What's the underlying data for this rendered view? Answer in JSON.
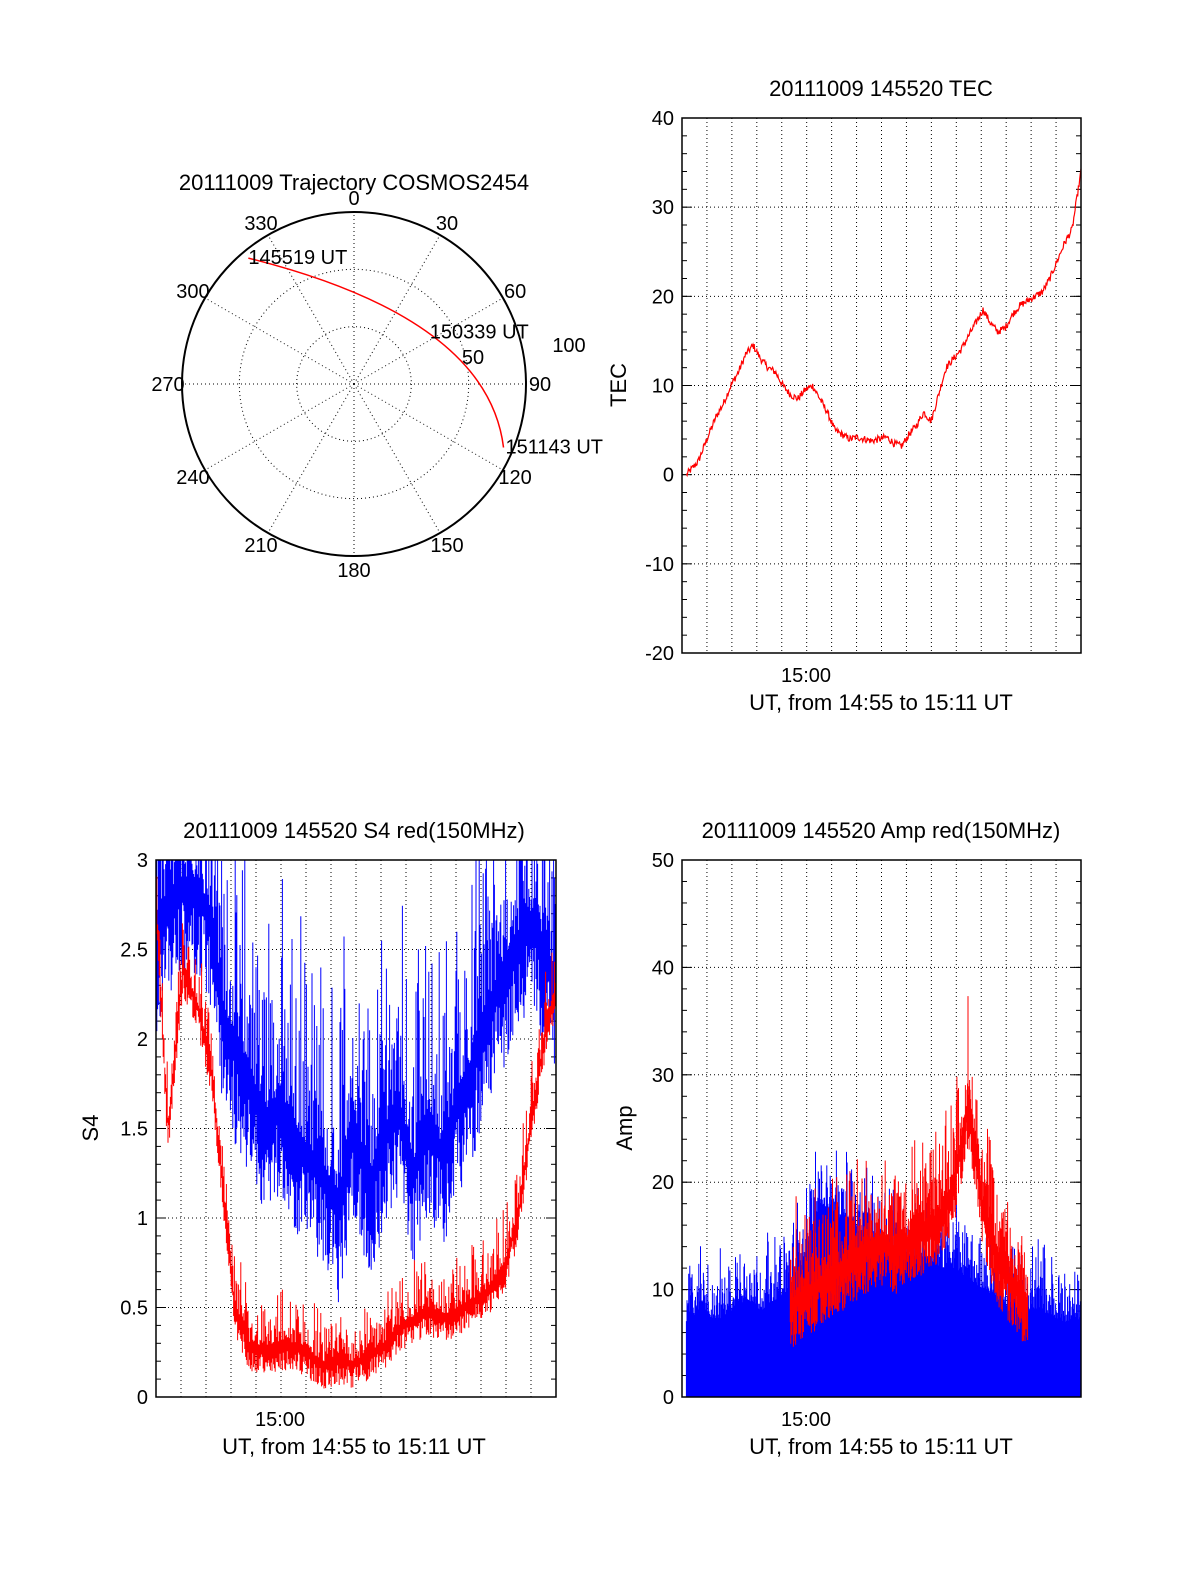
{
  "colors": {
    "red": "#ff0000",
    "blue": "#0000ff",
    "axis": "#000000",
    "grid": "#000000"
  },
  "chart_data": [
    {
      "type": "polar",
      "title": "20111009 Trajectory COSMOS2454",
      "angle_labels": [
        "0",
        "30",
        "60",
        "90",
        "120",
        "150",
        "180",
        "210",
        "240",
        "270",
        "300",
        "330"
      ],
      "radius_labels": [
        "50",
        "100"
      ],
      "grid": true,
      "track": {
        "color": "#ff0000",
        "start": {
          "label": "145519 UT",
          "azimuth": 320,
          "zenith": 86
        },
        "mid": {
          "label": "150339 UT",
          "azimuth": 58,
          "zenith": 48
        },
        "end": {
          "label": "151143 UT",
          "azimuth": 113,
          "zenith": 85
        }
      }
    },
    {
      "type": "line",
      "title": "20111009 145520 TEC",
      "ylabel": "TEC",
      "xlabel": "UT, from 14:55 to 15:11 UT",
      "x_tick_labels": [
        "15:00"
      ],
      "xlim": [
        14.917,
        15.186
      ],
      "ylim": [
        -20,
        40
      ],
      "y_ticks": [
        -20,
        -10,
        0,
        10,
        20,
        30,
        40
      ],
      "grid": true,
      "series": [
        {
          "color": "#ff0000",
          "x": [
            14.92,
            14.928,
            14.935,
            14.94,
            14.945,
            14.95,
            14.955,
            14.96,
            14.965,
            14.97,
            14.975,
            14.98,
            14.985,
            14.99,
            14.995,
            15.0,
            15.005,
            15.01,
            15.015,
            15.02,
            15.025,
            15.03,
            15.035,
            15.04,
            15.045,
            15.05,
            15.055,
            15.06,
            15.065,
            15.07,
            15.075,
            15.08,
            15.085,
            15.09,
            15.095,
            15.1,
            15.105,
            15.11,
            15.115,
            15.12,
            15.125,
            15.13,
            15.135,
            15.14,
            15.145,
            15.15,
            15.155,
            15.16,
            15.165,
            15.17,
            15.175,
            15.18,
            15.186
          ],
          "y": [
            0,
            1.5,
            4.5,
            6.5,
            8,
            10,
            11.5,
            13.5,
            14.5,
            13,
            12,
            11.5,
            10,
            9,
            8.5,
            9.5,
            10,
            8.5,
            7,
            5,
            4.5,
            4,
            4.2,
            4,
            3.8,
            4,
            4.2,
            3.5,
            3.2,
            4.5,
            5.5,
            7,
            6,
            9,
            12,
            13,
            14,
            15.5,
            17,
            18.5,
            17,
            16,
            16.5,
            18,
            19,
            19.5,
            20,
            20.5,
            22,
            24,
            26,
            27.5,
            34
          ]
        }
      ]
    },
    {
      "type": "line",
      "title": "20111009 145520 S4 red(150MHz)",
      "ylabel": "S4",
      "xlabel": "UT, from 14:55 to 15:11 UT",
      "x_tick_labels": [
        "15:00"
      ],
      "xlim": [
        14.917,
        15.186
      ],
      "ylim": [
        0,
        3
      ],
      "y_ticks": [
        "0",
        "0.5",
        "1",
        "1.5",
        "2",
        "2.5",
        "3"
      ],
      "grid": true,
      "series": [
        {
          "color": "#0000ff",
          "x": [
            14.917,
            14.925,
            14.935,
            14.945,
            14.955,
            14.962,
            14.97,
            14.98,
            14.99,
            15.0,
            15.01,
            15.02,
            15.03,
            15.04,
            15.05,
            15.06,
            15.07,
            15.08,
            15.09,
            15.1,
            15.11,
            15.12,
            15.13,
            15.14,
            15.15,
            15.16,
            15.17,
            15.18,
            15.186
          ],
          "y": [
            2.6,
            2.8,
            2.9,
            2.9,
            2.7,
            2.2,
            2.0,
            1.8,
            1.6,
            1.7,
            1.5,
            1.4,
            1.3,
            1.1,
            1.6,
            1.2,
            1.5,
            1.7,
            1.3,
            1.6,
            1.4,
            1.7,
            1.9,
            2.2,
            2.4,
            2.6,
            2.7,
            2.5,
            2.4
          ]
        },
        {
          "color": "#ff0000",
          "x": [
            14.917,
            14.925,
            14.935,
            14.945,
            14.955,
            14.962,
            14.97,
            14.98,
            14.99,
            15.0,
            15.01,
            15.02,
            15.03,
            15.04,
            15.05,
            15.06,
            15.07,
            15.08,
            15.09,
            15.1,
            15.11,
            15.12,
            15.13,
            15.14,
            15.15,
            15.16,
            15.17,
            15.18,
            15.186
          ],
          "y": [
            2.8,
            1.5,
            2.4,
            2.2,
            1.8,
            1.2,
            0.5,
            0.3,
            0.28,
            0.3,
            0.3,
            0.25,
            0.2,
            0.22,
            0.2,
            0.25,
            0.3,
            0.4,
            0.45,
            0.5,
            0.45,
            0.5,
            0.55,
            0.6,
            0.7,
            1.0,
            1.6,
            2.1,
            2.3
          ]
        }
      ]
    },
    {
      "type": "line",
      "title": "20111009 145520 Amp red(150MHz)",
      "ylabel": "Amp",
      "xlabel": "UT, from 14:55 to 15:11 UT",
      "x_tick_labels": [
        "15:00"
      ],
      "xlim": [
        14.917,
        15.186
      ],
      "ylim": [
        0,
        50
      ],
      "y_ticks": [
        0,
        10,
        20,
        30,
        40,
        50
      ],
      "grid": true,
      "series": [
        {
          "color": "#0000ff",
          "x": [
            14.92,
            14.93,
            14.94,
            14.95,
            14.96,
            14.97,
            14.98,
            14.99,
            15.0,
            15.01,
            15.02,
            15.03,
            15.04,
            15.05,
            15.06,
            15.07,
            15.08,
            15.09,
            15.1,
            15.11,
            15.12,
            15.13,
            15.14,
            15.15,
            15.16,
            15.17,
            15.18,
            15.186
          ],
          "y": [
            7,
            8,
            7,
            8,
            9,
            8,
            9,
            10,
            13,
            18,
            17,
            16,
            15,
            14,
            14,
            13,
            13,
            12,
            12,
            11,
            10,
            9,
            8,
            8,
            8,
            7,
            7,
            7
          ]
        },
        {
          "color": "#ff0000",
          "x": [
            14.99,
            15.0,
            15.01,
            15.02,
            15.03,
            15.04,
            15.05,
            15.06,
            15.07,
            15.08,
            15.09,
            15.1,
            15.11,
            15.12,
            15.13,
            15.14,
            15.15
          ],
          "y": [
            9,
            10,
            11,
            12,
            13,
            14,
            15,
            14,
            15,
            16,
            17,
            20,
            28,
            18,
            13,
            11,
            9
          ]
        }
      ]
    }
  ]
}
